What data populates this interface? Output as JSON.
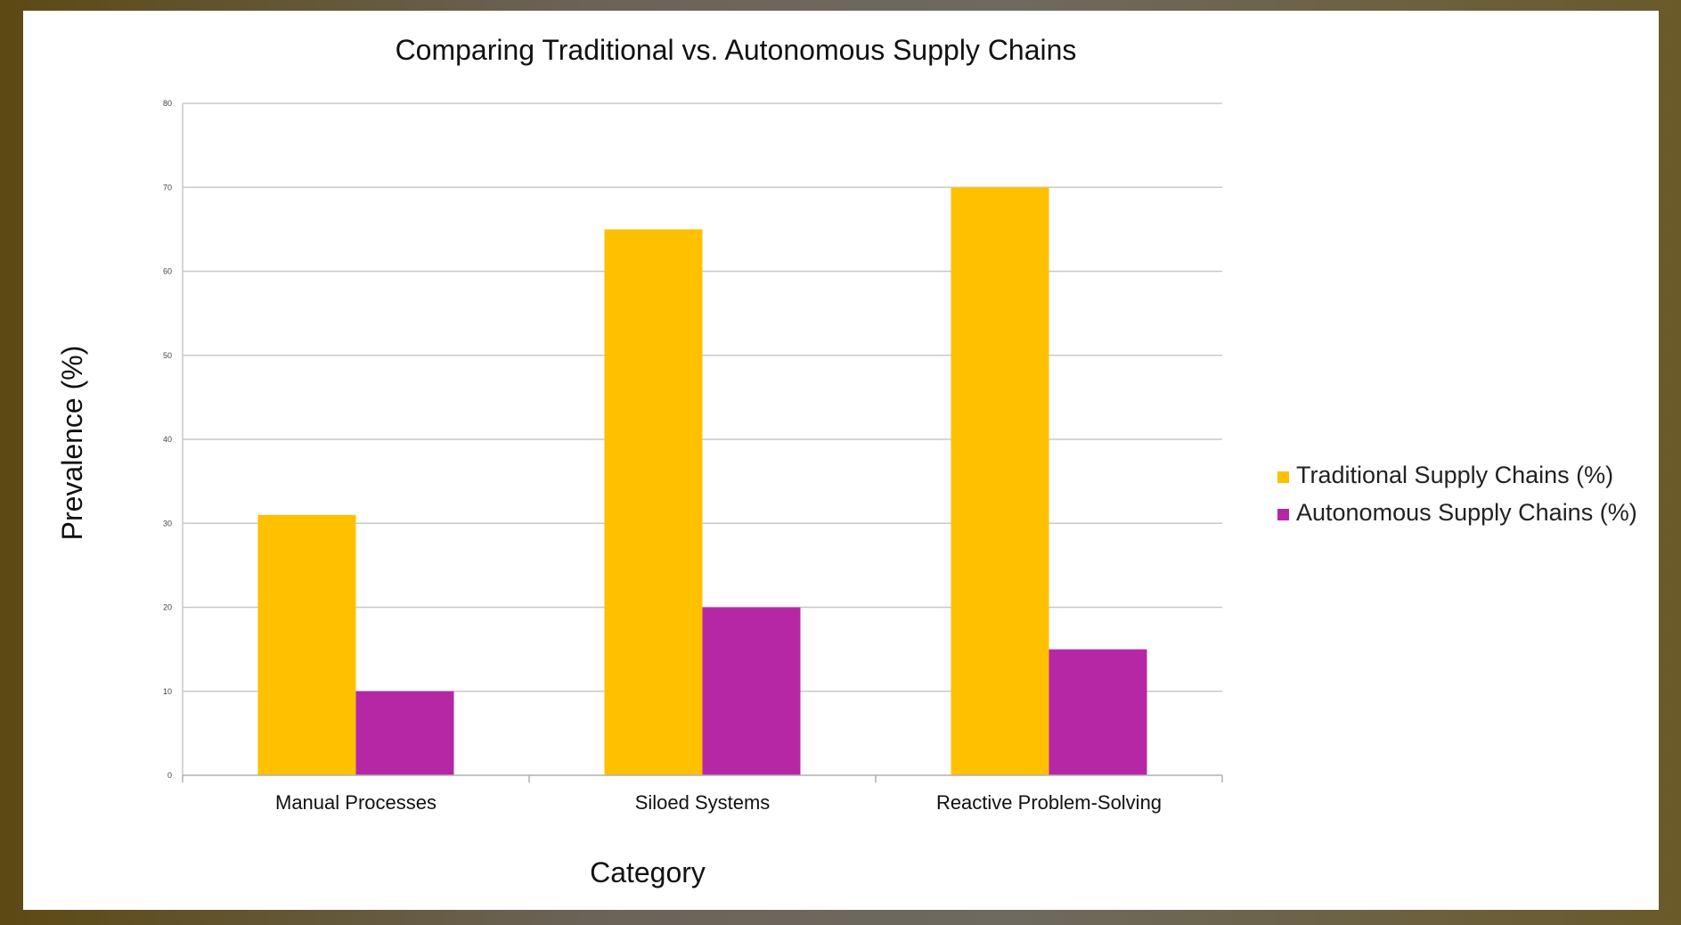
{
  "chart_data": {
    "type": "bar",
    "title": "Comparing Traditional vs. Autonomous Supply Chains",
    "xlabel": "Category",
    "ylabel": "Prevalence (%)",
    "categories": [
      "Manual Processes",
      "Siloed Systems",
      "Reactive Problem-Solving"
    ],
    "series": [
      {
        "name": "Traditional Supply Chains (%)",
        "values": [
          31,
          65,
          70
        ],
        "color": "#ffc000"
      },
      {
        "name": "Autonomous Supply Chains (%)",
        "values": [
          10,
          20,
          15
        ],
        "color": "#b627a6"
      }
    ],
    "ylim": [
      0,
      80
    ],
    "yticks": [
      "0",
      "10",
      "20",
      "30",
      "40",
      "50",
      "60",
      "70",
      "80"
    ],
    "grid": true,
    "legend": "right"
  }
}
